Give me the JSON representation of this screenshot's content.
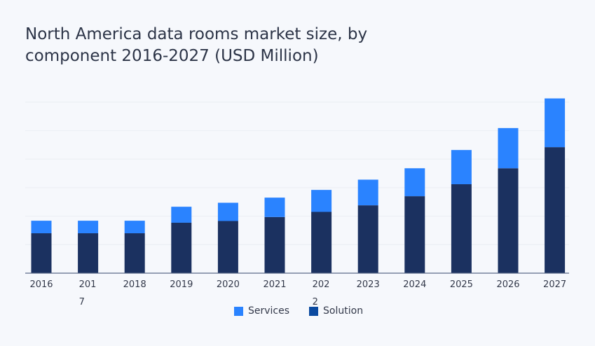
{
  "chart_data": {
    "type": "bar",
    "stacked": true,
    "title": "North America data rooms market size, by component 2016-2027 (USD Million)",
    "xlabel": "",
    "ylabel": "",
    "categories": [
      "2016",
      "2017",
      "2018",
      "2019",
      "2020",
      "2021",
      "2022",
      "2023",
      "2024",
      "2025",
      "2026",
      "2027"
    ],
    "series": [
      {
        "name": "Solution",
        "color": "#1b3160",
        "legend_color": "#0b4aa0",
        "values": [
          1.4,
          1.4,
          1.4,
          1.77,
          1.83,
          1.97,
          2.15,
          2.38,
          2.7,
          3.12,
          3.68,
          4.42
        ]
      },
      {
        "name": "Services",
        "color": "#2a83ff",
        "legend_color": "#2a83ff",
        "values": [
          0.44,
          0.44,
          0.44,
          0.56,
          0.64,
          0.68,
          0.77,
          0.9,
          0.98,
          1.2,
          1.41,
          1.71
        ]
      }
    ],
    "ylim": [
      0,
      6
    ],
    "y_tick_labels_shown": false,
    "grid": true,
    "legend_position": "bottom"
  }
}
